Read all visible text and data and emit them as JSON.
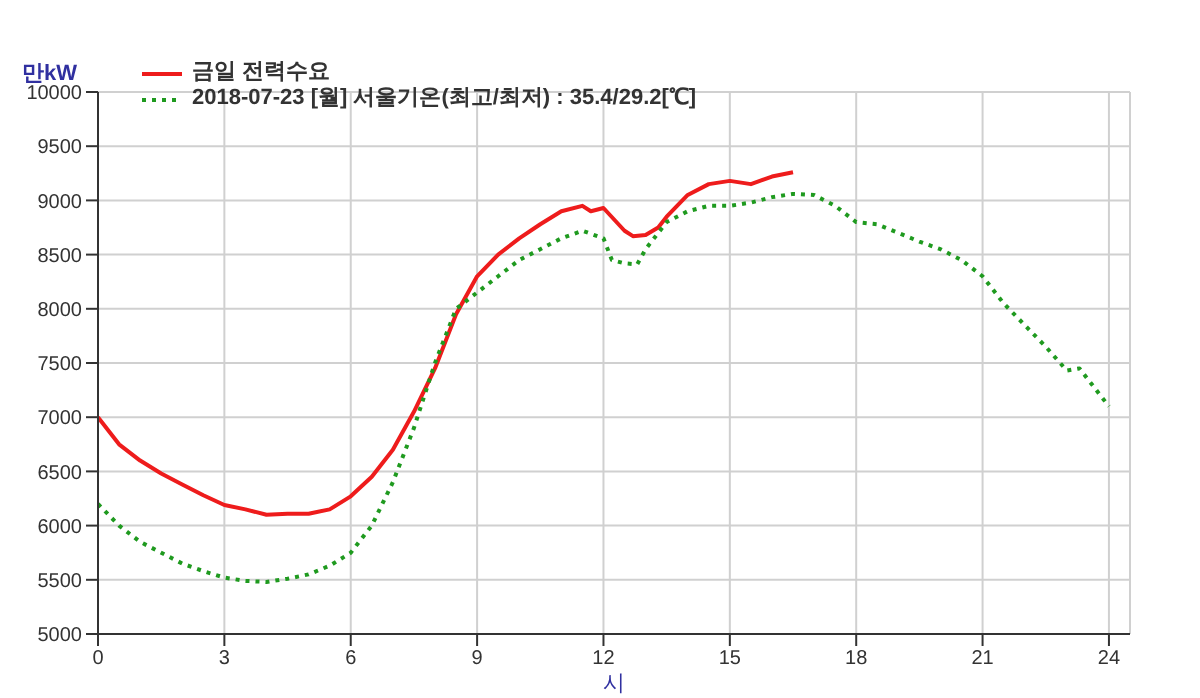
{
  "chart_data": {
    "type": "line",
    "xlabel": "시",
    "ylabel": "만kW",
    "xlim": [
      0,
      24.5
    ],
    "xticks": [
      0,
      3,
      6,
      9,
      12,
      15,
      18,
      21,
      24
    ],
    "ylim": [
      5000,
      10000
    ],
    "yticks": [
      5000,
      5500,
      6000,
      6500,
      7000,
      7500,
      8000,
      8500,
      9000,
      9500,
      10000
    ],
    "grid": true,
    "legend": "top left",
    "marker": "none",
    "series": [
      {
        "name": "금일 전력수요",
        "color": "#ee1c1c",
        "line_style": "solid",
        "x": [
          0,
          0.5,
          1,
          1.5,
          2,
          2.5,
          3,
          3.5,
          4,
          4.5,
          5,
          5.5,
          6,
          6.5,
          7,
          7.5,
          8,
          8.5,
          9,
          9.5,
          10,
          10.5,
          11,
          11.5,
          11.7,
          12,
          12.5,
          12.7,
          13,
          13.3,
          13.5,
          14,
          14.5,
          15,
          15.5,
          16,
          16.5
        ],
        "values": [
          7000,
          6750,
          6600,
          6480,
          6380,
          6280,
          6190,
          6150,
          6100,
          6110,
          6110,
          6150,
          6270,
          6450,
          6700,
          7050,
          7450,
          7950,
          8300,
          8500,
          8650,
          8780,
          8900,
          8950,
          8900,
          8930,
          8720,
          8670,
          8680,
          8750,
          8850,
          9050,
          9150,
          9180,
          9150,
          9220,
          9260
        ]
      },
      {
        "name": "2018-07-23 [월] 서울기온(최고/최저) : 35.4/29.2[℃]",
        "color": "#1f9a1f",
        "line_style": "dotted",
        "x": [
          0,
          0.5,
          1,
          1.5,
          2,
          2.5,
          3,
          3.5,
          4,
          4.5,
          5,
          5.5,
          6,
          6.5,
          7,
          7.5,
          8,
          8.5,
          9,
          9.5,
          10,
          10.5,
          11,
          11.5,
          12,
          12.2,
          12.5,
          12.8,
          13,
          13.5,
          14,
          14.5,
          15,
          15.5,
          16,
          16.5,
          17,
          17.5,
          18,
          18.5,
          19,
          19.5,
          20,
          20.5,
          21,
          21.5,
          22,
          22.5,
          23,
          23.3,
          23.5,
          24
        ],
        "values": [
          6200,
          6000,
          5850,
          5750,
          5650,
          5580,
          5520,
          5490,
          5480,
          5510,
          5550,
          5630,
          5750,
          6000,
          6400,
          6900,
          7500,
          8000,
          8150,
          8300,
          8450,
          8550,
          8650,
          8720,
          8650,
          8450,
          8420,
          8410,
          8550,
          8800,
          8900,
          8950,
          8950,
          8980,
          9030,
          9060,
          9050,
          8950,
          8800,
          8780,
          8700,
          8620,
          8550,
          8450,
          8300,
          8050,
          7850,
          7650,
          7430,
          7450,
          7350,
          7100
        ]
      }
    ]
  }
}
